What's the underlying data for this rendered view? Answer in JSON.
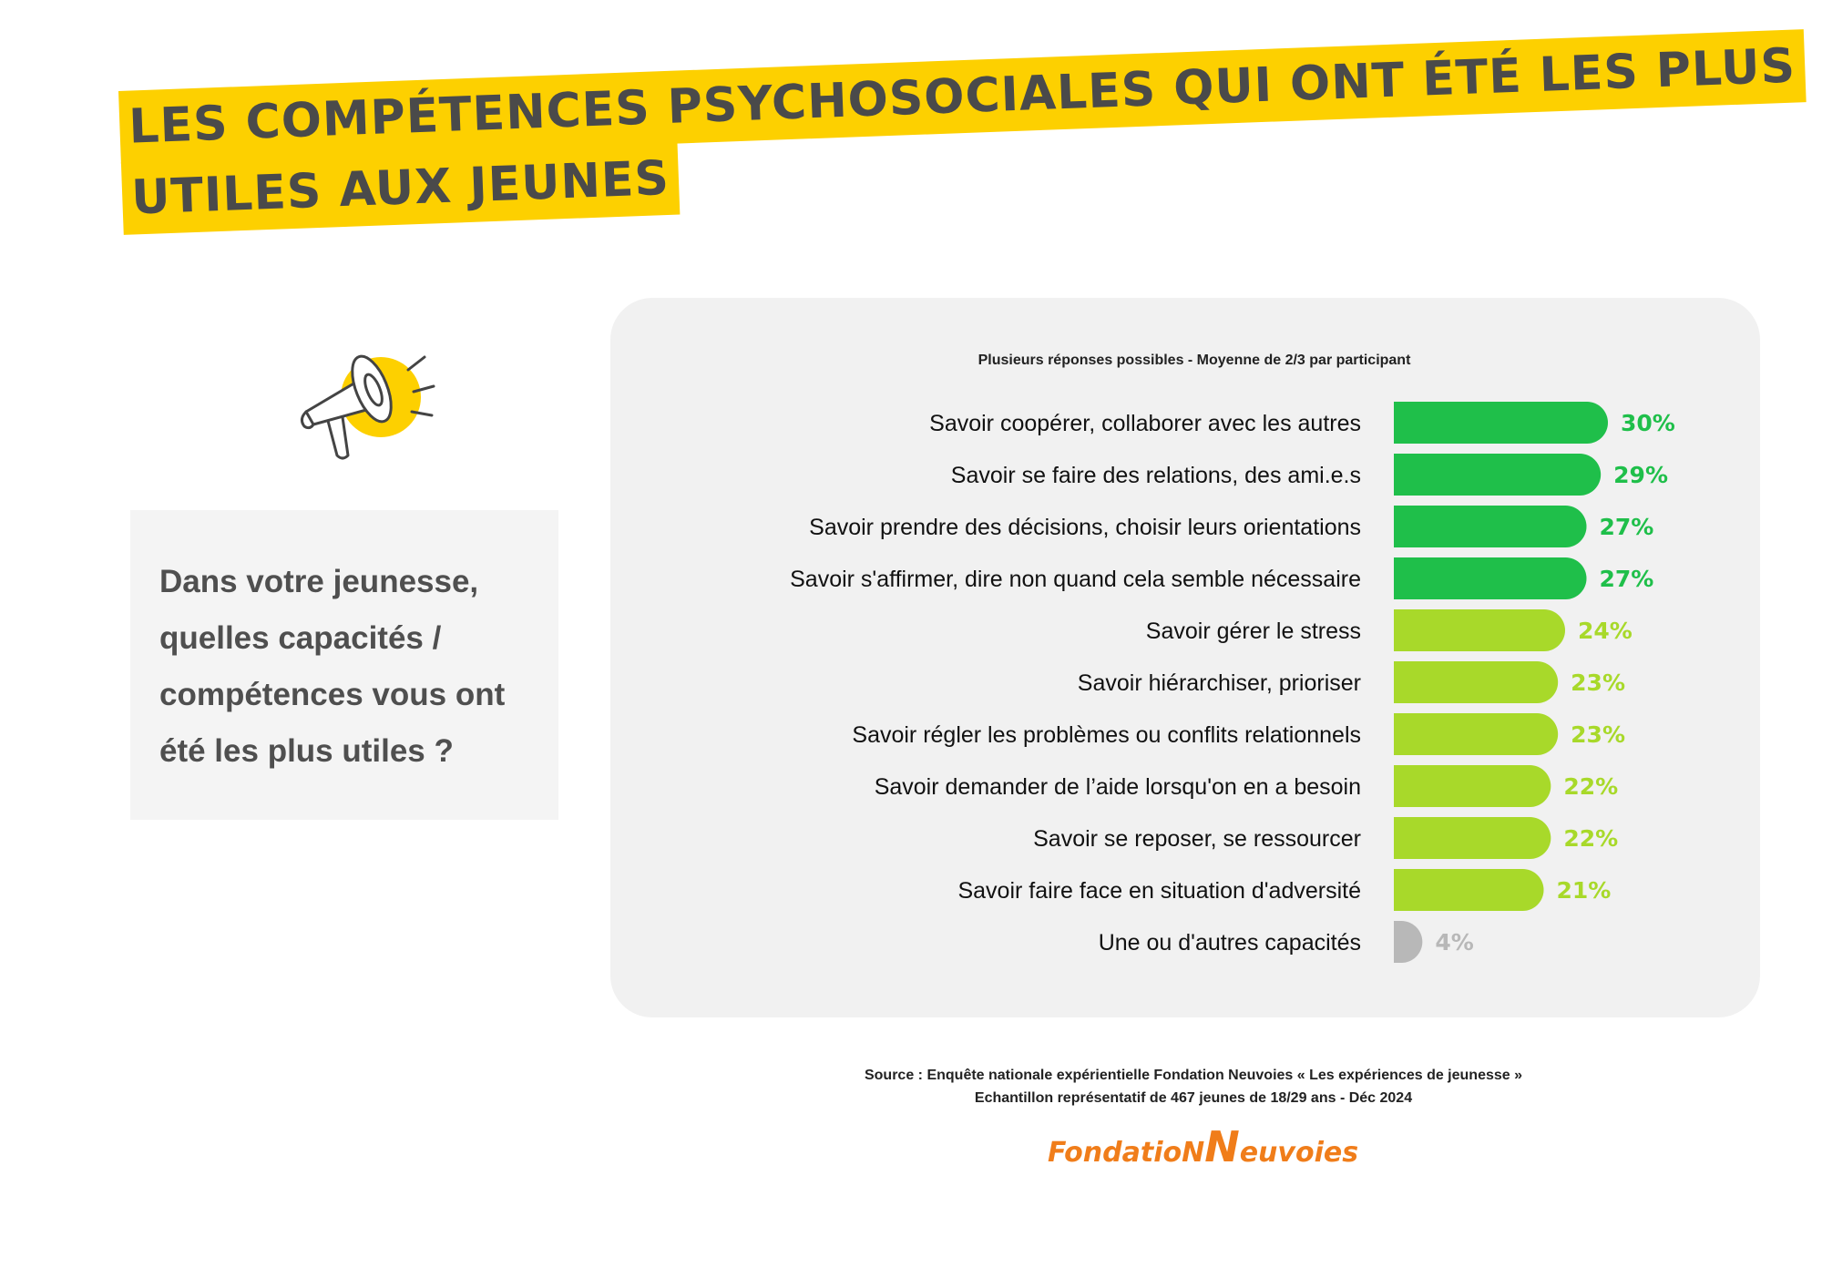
{
  "title": {
    "line1": "LES COMPÉTENCES PSYCHOSOCIALES QUI ONT ÉTÉ LES PLUS",
    "line2": "UTILES AUX JEUNES"
  },
  "question": "Dans votre jeunesse, quelles capacités / compétences vous ont été les plus utiles ?",
  "chart_data": {
    "type": "bar",
    "orientation": "horizontal",
    "subtitle": "Plusieurs réponses possibles - Moyenne de 2/3 par participant",
    "categories": [
      "Savoir coopérer, collaborer avec les autres",
      "Savoir se faire des relations, des ami.e.s",
      "Savoir prendre des décisions, choisir leurs orientations",
      "Savoir s'affirmer, dire non quand cela semble nécessaire",
      "Savoir gérer le stress",
      "Savoir hiérarchiser, prioriser",
      "Savoir régler les problèmes ou conflits relationnels",
      "Savoir demander de l’aide lorsqu'on en a besoin",
      "Savoir se reposer, se ressourcer",
      "Savoir faire face en situation d'adversité",
      "Une ou d'autres capacités"
    ],
    "values": [
      30,
      29,
      27,
      27,
      24,
      23,
      23,
      22,
      22,
      21,
      4
    ],
    "value_labels": [
      "30%",
      "29%",
      "27%",
      "27%",
      "24%",
      "23%",
      "23%",
      "22%",
      "22%",
      "21%",
      "4%"
    ],
    "unit": "%",
    "xlim": [
      0,
      30
    ],
    "colors": [
      "#1fbf4a",
      "#1fbf4a",
      "#1fbf4a",
      "#1fbf4a",
      "#a8d92a",
      "#a8d92a",
      "#a8d92a",
      "#a8d92a",
      "#a8d92a",
      "#a8d92a",
      "#b8b8b8"
    ],
    "grid": false,
    "legend": "none"
  },
  "source": {
    "line1": "Source : Enquête nationale expérientielle Fondation Neuvoies « Les expériences de jeunesse »",
    "line2": "Echantillon représentatif de 467 jeunes de 18/29 ans -  Déc 2024"
  },
  "logo": {
    "part1": "FondatioN",
    "part2": "N",
    "part3": "euvoies"
  },
  "colors": {
    "highlight": "#fdd000",
    "title_text": "#4a4a4a",
    "logo": "#f07d1a"
  }
}
